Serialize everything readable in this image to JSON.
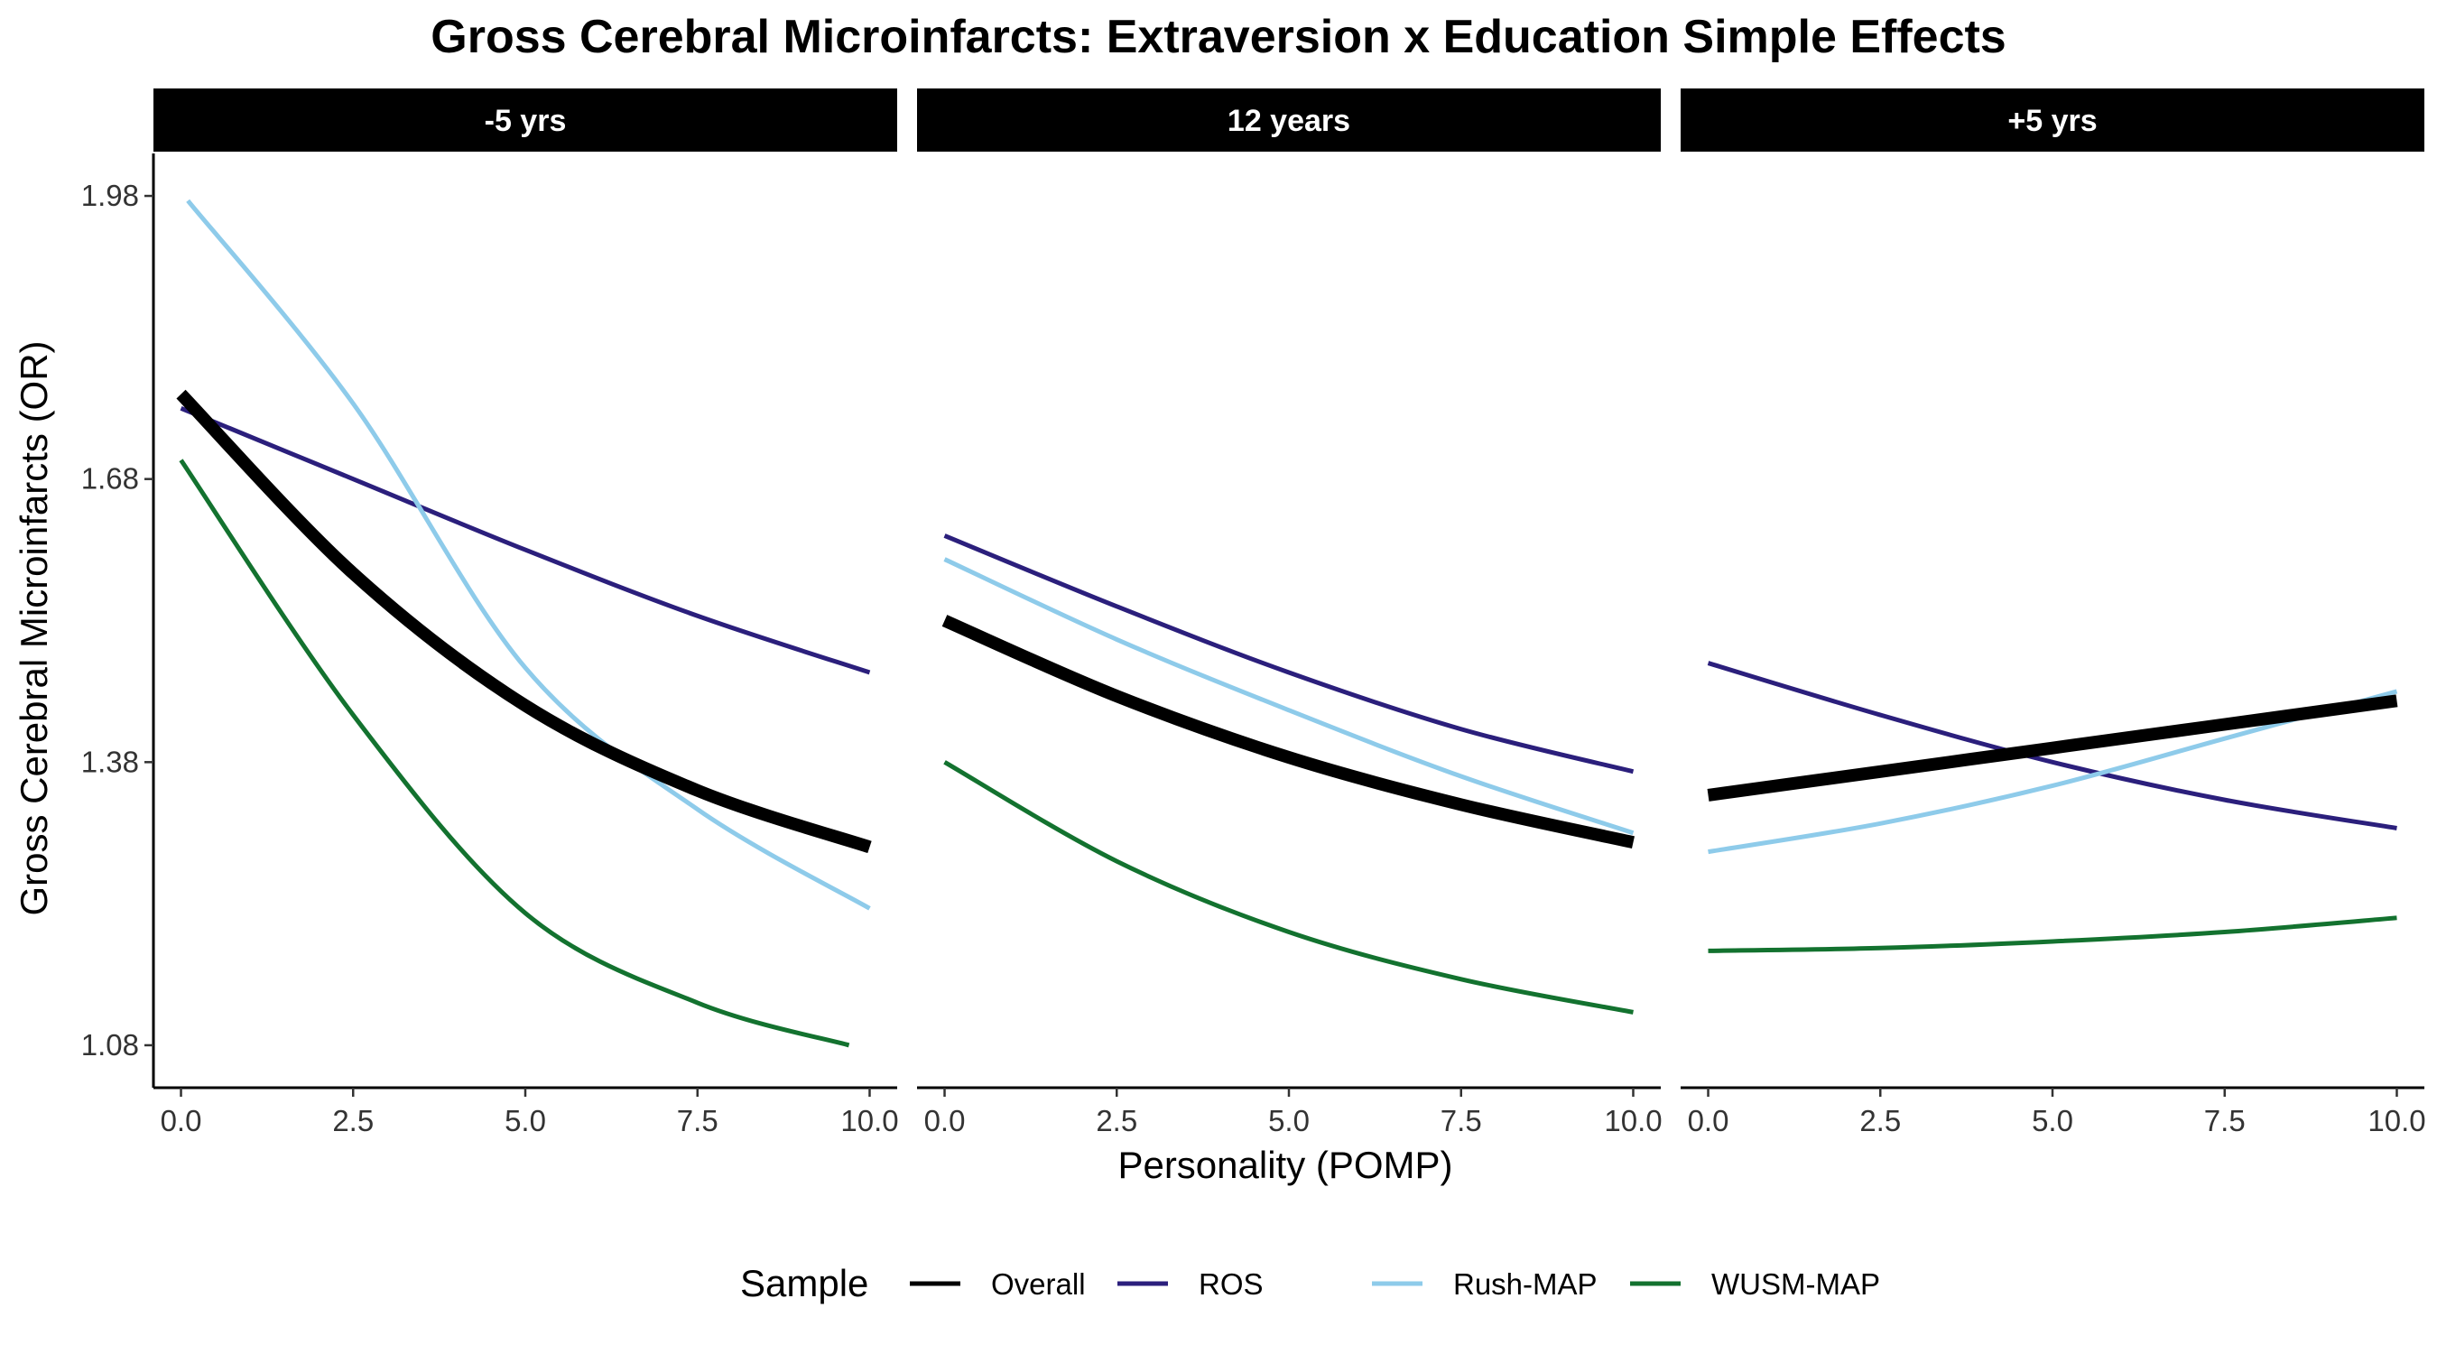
{
  "chart_data": {
    "type": "line",
    "title": "Gross Cerebral Microinfarcts: Extraversion x Education Simple Effects",
    "xlabel": "Personality (POMP)",
    "ylabel": "Gross Cerebral Microinfarcts (OR)",
    "xlim": [
      -0.4,
      10.4
    ],
    "ylim": [
      1.035,
      2.025
    ],
    "x_ticks": [
      0,
      2.5,
      5,
      7.5,
      10
    ],
    "x_tick_labels": [
      "0.0",
      "2.5",
      "5.0",
      "7.5",
      "10.0"
    ],
    "y_ticks": [
      1.08,
      1.38,
      1.68,
      1.98
    ],
    "y_tick_labels": [
      "1.08",
      "1.38",
      "1.68",
      "1.98"
    ],
    "grid": false,
    "legend": {
      "title": "Sample",
      "position": "bottom",
      "entries": [
        "Overall",
        "ROS",
        "Rush-MAP",
        "WUSM-MAP"
      ]
    },
    "series_styles": {
      "Overall": {
        "color": "#000000",
        "width": 14
      },
      "ROS": {
        "color": "#2b1f7c",
        "width": 5
      },
      "Rush-MAP": {
        "color": "#8ecbea",
        "width": 5
      },
      "WUSM-MAP": {
        "color": "#13722f",
        "width": 5
      }
    },
    "panels": [
      {
        "label": "-5 yrs",
        "series": [
          {
            "name": "Overall",
            "x": [
              0,
              2.5,
              5,
              7.5,
              10
            ],
            "y": [
              1.77,
              1.58,
              1.44,
              1.35,
              1.29
            ]
          },
          {
            "name": "ROS",
            "x": [
              0,
              2.5,
              5,
              7.5,
              10
            ],
            "y": [
              1.755,
              1.68,
              1.605,
              1.535,
              1.475
            ]
          },
          {
            "name": "Rush-MAP",
            "x": [
              0.1,
              2.5,
              5,
              7.5,
              10
            ],
            "y": [
              1.975,
              1.76,
              1.48,
              1.33,
              1.225
            ]
          },
          {
            "name": "WUSM-MAP",
            "x": [
              0,
              2.5,
              5,
              7.5,
              9.7
            ],
            "y": [
              1.7,
              1.43,
              1.22,
              1.125,
              1.08
            ]
          }
        ]
      },
      {
        "label": "12 years",
        "series": [
          {
            "name": "Overall",
            "x": [
              0,
              2.5,
              5,
              7.5,
              10
            ],
            "y": [
              1.53,
              1.45,
              1.385,
              1.335,
              1.295
            ]
          },
          {
            "name": "ROS",
            "x": [
              0,
              2.5,
              5,
              7.5,
              10
            ],
            "y": [
              1.62,
              1.545,
              1.475,
              1.415,
              1.37
            ]
          },
          {
            "name": "Rush-MAP",
            "x": [
              0,
              2.5,
              5,
              7.5,
              10
            ],
            "y": [
              1.595,
              1.51,
              1.435,
              1.365,
              1.305
            ]
          },
          {
            "name": "WUSM-MAP",
            "x": [
              0,
              2.5,
              5,
              7.5,
              10
            ],
            "y": [
              1.38,
              1.275,
              1.2,
              1.15,
              1.115
            ]
          }
        ]
      },
      {
        "label": "+5 yrs",
        "series": [
          {
            "name": "Overall",
            "x": [
              0,
              2.5,
              5,
              7.5,
              10
            ],
            "y": [
              1.345,
              1.37,
              1.395,
              1.42,
              1.445
            ]
          },
          {
            "name": "ROS",
            "x": [
              0,
              2.5,
              5,
              7.5,
              10
            ],
            "y": [
              1.485,
              1.43,
              1.38,
              1.34,
              1.31
            ]
          },
          {
            "name": "Rush-MAP",
            "x": [
              0,
              2.5,
              5,
              7.5,
              10
            ],
            "y": [
              1.285,
              1.315,
              1.355,
              1.405,
              1.455
            ]
          },
          {
            "name": "WUSM-MAP",
            "x": [
              0,
              2.5,
              5,
              7.5,
              10
            ],
            "y": [
              1.18,
              1.183,
              1.19,
              1.2,
              1.215
            ]
          }
        ]
      }
    ]
  }
}
